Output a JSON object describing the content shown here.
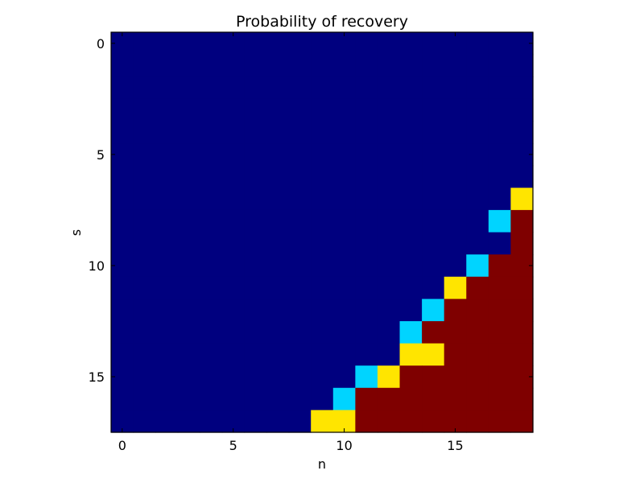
{
  "chart_data": {
    "type": "heatmap",
    "title": "Probability of recovery",
    "xlabel": "n",
    "ylabel": "s",
    "xlim": [
      -0.5,
      18.5
    ],
    "ylim": [
      17.5,
      -0.5
    ],
    "x_ticks": [
      0,
      5,
      10,
      15
    ],
    "y_ticks": [
      0,
      5,
      10,
      15
    ],
    "colormap": "jet",
    "colors": {
      "low": "#00007f",
      "mid_low": "#00d4ff",
      "mid_high": "#ffe500",
      "high": "#7f0000"
    },
    "n_rows": 18,
    "n_cols": 19,
    "values": [
      [
        0,
        0,
        0,
        0,
        0,
        0,
        0,
        0,
        0,
        0,
        0,
        0,
        0,
        0,
        0,
        0,
        0,
        0,
        0
      ],
      [
        0,
        0,
        0,
        0,
        0,
        0,
        0,
        0,
        0,
        0,
        0,
        0,
        0,
        0,
        0,
        0,
        0,
        0,
        0
      ],
      [
        0,
        0,
        0,
        0,
        0,
        0,
        0,
        0,
        0,
        0,
        0,
        0,
        0,
        0,
        0,
        0,
        0,
        0,
        0
      ],
      [
        0,
        0,
        0,
        0,
        0,
        0,
        0,
        0,
        0,
        0,
        0,
        0,
        0,
        0,
        0,
        0,
        0,
        0,
        0
      ],
      [
        0,
        0,
        0,
        0,
        0,
        0,
        0,
        0,
        0,
        0,
        0,
        0,
        0,
        0,
        0,
        0,
        0,
        0,
        0
      ],
      [
        0,
        0,
        0,
        0,
        0,
        0,
        0,
        0,
        0,
        0,
        0,
        0,
        0,
        0,
        0,
        0,
        0,
        0,
        0
      ],
      [
        0,
        0,
        0,
        0,
        0,
        0,
        0,
        0,
        0,
        0,
        0,
        0,
        0,
        0,
        0,
        0,
        0,
        0,
        0
      ],
      [
        0,
        0,
        0,
        0,
        0,
        0,
        0,
        0,
        0,
        0,
        0,
        0,
        0,
        0,
        0,
        0,
        0,
        0,
        0.66
      ],
      [
        0,
        0,
        0,
        0,
        0,
        0,
        0,
        0,
        0,
        0,
        0,
        0,
        0,
        0,
        0,
        0,
        0,
        0.33,
        1
      ],
      [
        0,
        0,
        0,
        0,
        0,
        0,
        0,
        0,
        0,
        0,
        0,
        0,
        0,
        0,
        0,
        0,
        0,
        0,
        1
      ],
      [
        0,
        0,
        0,
        0,
        0,
        0,
        0,
        0,
        0,
        0,
        0,
        0,
        0,
        0,
        0,
        0,
        0.33,
        1,
        1
      ],
      [
        0,
        0,
        0,
        0,
        0,
        0,
        0,
        0,
        0,
        0,
        0,
        0,
        0,
        0,
        0,
        0.66,
        1,
        1,
        1
      ],
      [
        0,
        0,
        0,
        0,
        0,
        0,
        0,
        0,
        0,
        0,
        0,
        0,
        0,
        0,
        0.33,
        1,
        1,
        1,
        1
      ],
      [
        0,
        0,
        0,
        0,
        0,
        0,
        0,
        0,
        0,
        0,
        0,
        0,
        0,
        0.33,
        1,
        1,
        1,
        1,
        1
      ],
      [
        0,
        0,
        0,
        0,
        0,
        0,
        0,
        0,
        0,
        0,
        0,
        0,
        0,
        0.66,
        0.66,
        1,
        1,
        1,
        1
      ],
      [
        0,
        0,
        0,
        0,
        0,
        0,
        0,
        0,
        0,
        0,
        0,
        0.33,
        0.66,
        1,
        1,
        1,
        1,
        1,
        1
      ],
      [
        0,
        0,
        0,
        0,
        0,
        0,
        0,
        0,
        0,
        0,
        0.33,
        1,
        1,
        1,
        1,
        1,
        1,
        1,
        1
      ],
      [
        0,
        0,
        0,
        0,
        0,
        0,
        0,
        0,
        0,
        0.66,
        0.66,
        1,
        1,
        1,
        1,
        1,
        1,
        1,
        1
      ]
    ]
  }
}
